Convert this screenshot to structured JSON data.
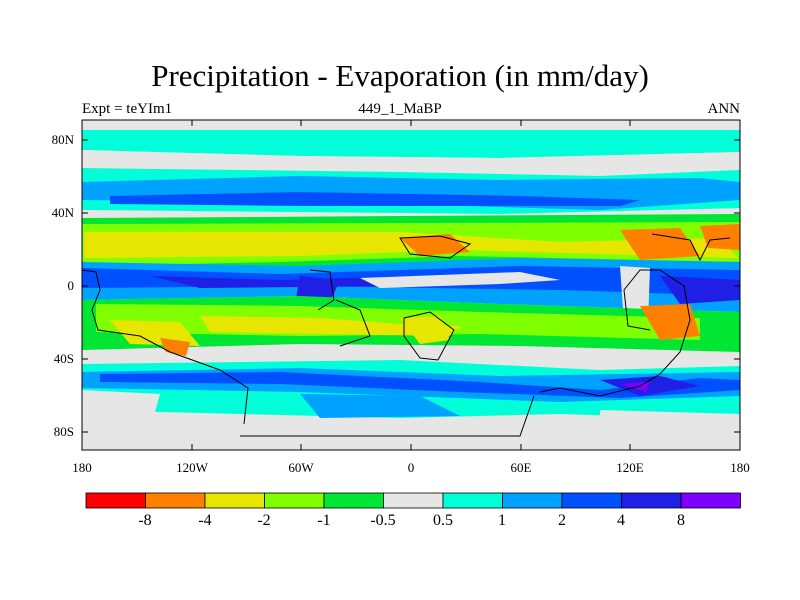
{
  "title": "Precipitation - Evaporation (in mm/day)",
  "left_label": "Expt = teYIm1",
  "center_label": "449_1_MaBP",
  "right_label": "ANN",
  "lat_ticks": [
    "80N",
    "40N",
    "0",
    "40S",
    "80S"
  ],
  "lon_ticks": [
    "180",
    "120W",
    "60W",
    "0",
    "60E",
    "120E",
    "180"
  ],
  "colorbar": {
    "colors": [
      "#ff0000",
      "#ff7f00",
      "#e6e600",
      "#80ff00",
      "#00e633",
      "#e6e6e6",
      "#00ffd9",
      "#00a2ff",
      "#0050ff",
      "#1f1fe6",
      "#8000ff"
    ],
    "labels": [
      "-8",
      "-4",
      "-2",
      "-1",
      "-0.5",
      "0.5",
      "1",
      "2",
      "4",
      "8"
    ]
  }
}
